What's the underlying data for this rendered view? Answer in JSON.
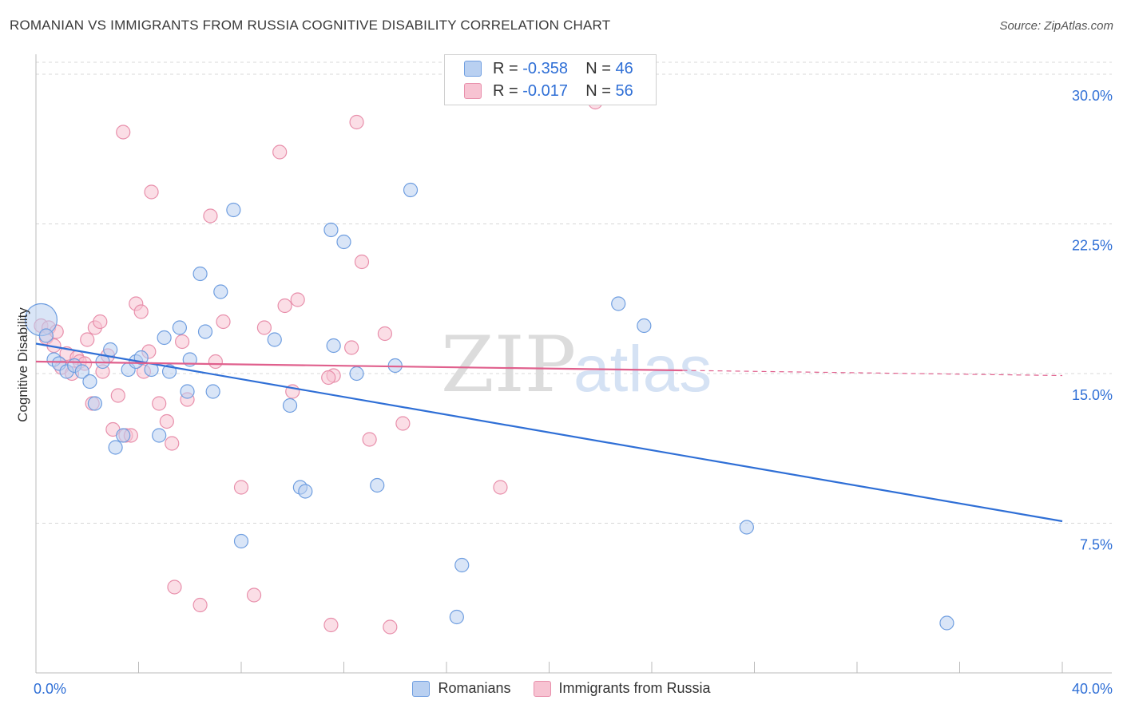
{
  "title": "ROMANIAN VS IMMIGRANTS FROM RUSSIA COGNITIVE DISABILITY CORRELATION CHART",
  "source": "Source: ZipAtlas.com",
  "watermark": {
    "zip": "ZIP",
    "atlas": "atlas"
  },
  "legend": {
    "rows": [
      {
        "r_label": "R =",
        "r_value": "-0.358",
        "n_label": "N =",
        "n_value": "46"
      },
      {
        "r_label": "R =",
        "r_value": "-0.017",
        "n_label": "N =",
        "n_value": "56"
      }
    ]
  },
  "bottom_legend": {
    "series_a": "Romanians",
    "series_b": "Immigrants from Russia"
  },
  "colors": {
    "blue_fill": "#b9d0f1",
    "blue_stroke": "#6f9ee0",
    "blue_line": "#2f6fd6",
    "pink_fill": "#f7c3d2",
    "pink_stroke": "#e88fab",
    "pink_line": "#e0608d",
    "grid": "#d8d8d8",
    "axis_label": "#2f6fd6"
  },
  "chart_data": {
    "type": "scatter",
    "title": "ROMANIAN VS IMMIGRANTS FROM RUSSIA COGNITIVE DISABILITY CORRELATION CHART",
    "xlabel": "",
    "ylabel": "Cognitive Disability",
    "xlim": [
      0,
      40
    ],
    "ylim": [
      0,
      30.6
    ],
    "x_tick_labels": [
      "0.0%",
      "40.0%"
    ],
    "y_ticks": [
      7.5,
      15.0,
      22.5,
      30.0
    ],
    "y_tick_labels": [
      "7.5%",
      "15.0%",
      "22.5%",
      "30.0%"
    ],
    "series": [
      {
        "name": "Romanians",
        "r": -0.358,
        "n": 46,
        "trend": {
          "x": [
            0,
            40
          ],
          "y": [
            16.5,
            7.6
          ],
          "dashed_from": null
        },
        "points": [
          {
            "x": 0.2,
            "y": 17.7,
            "big": true
          },
          {
            "x": 0.4,
            "y": 16.9
          },
          {
            "x": 0.7,
            "y": 15.7
          },
          {
            "x": 0.9,
            "y": 15.5
          },
          {
            "x": 1.2,
            "y": 15.1
          },
          {
            "x": 1.5,
            "y": 15.4
          },
          {
            "x": 1.8,
            "y": 15.1
          },
          {
            "x": 2.1,
            "y": 14.6
          },
          {
            "x": 2.3,
            "y": 13.5
          },
          {
            "x": 2.6,
            "y": 15.6
          },
          {
            "x": 2.9,
            "y": 16.2
          },
          {
            "x": 3.1,
            "y": 11.3
          },
          {
            "x": 3.4,
            "y": 11.9
          },
          {
            "x": 3.6,
            "y": 15.2
          },
          {
            "x": 3.9,
            "y": 15.6
          },
          {
            "x": 4.1,
            "y": 15.8
          },
          {
            "x": 4.5,
            "y": 15.2
          },
          {
            "x": 4.8,
            "y": 11.9
          },
          {
            "x": 5.0,
            "y": 16.8
          },
          {
            "x": 5.2,
            "y": 15.1
          },
          {
            "x": 5.6,
            "y": 17.3
          },
          {
            "x": 5.9,
            "y": 14.1
          },
          {
            "x": 6.0,
            "y": 15.7
          },
          {
            "x": 6.4,
            "y": 20.0
          },
          {
            "x": 6.6,
            "y": 17.1
          },
          {
            "x": 6.9,
            "y": 14.1
          },
          {
            "x": 7.2,
            "y": 19.1
          },
          {
            "x": 7.7,
            "y": 23.2
          },
          {
            "x": 8.0,
            "y": 6.6
          },
          {
            "x": 9.3,
            "y": 16.7
          },
          {
            "x": 9.9,
            "y": 13.4
          },
          {
            "x": 10.3,
            "y": 9.3
          },
          {
            "x": 10.5,
            "y": 9.1
          },
          {
            "x": 11.5,
            "y": 22.2
          },
          {
            "x": 11.6,
            "y": 16.4
          },
          {
            "x": 12.0,
            "y": 21.6
          },
          {
            "x": 12.5,
            "y": 15.0
          },
          {
            "x": 13.3,
            "y": 9.4
          },
          {
            "x": 14.0,
            "y": 15.4
          },
          {
            "x": 14.6,
            "y": 24.2
          },
          {
            "x": 16.4,
            "y": 2.8
          },
          {
            "x": 16.6,
            "y": 5.4
          },
          {
            "x": 22.7,
            "y": 18.5
          },
          {
            "x": 23.7,
            "y": 17.4
          },
          {
            "x": 27.7,
            "y": 7.3
          },
          {
            "x": 35.5,
            "y": 2.5
          }
        ]
      },
      {
        "name": "Immigrants from Russia",
        "r": -0.017,
        "n": 56,
        "trend": {
          "x": [
            0,
            40
          ],
          "y": [
            15.6,
            14.9
          ],
          "dashed_from": 25.2
        },
        "points": [
          {
            "x": 0.2,
            "y": 17.4
          },
          {
            "x": 0.4,
            "y": 16.8
          },
          {
            "x": 0.5,
            "y": 17.3
          },
          {
            "x": 0.7,
            "y": 16.4
          },
          {
            "x": 0.8,
            "y": 17.1
          },
          {
            "x": 1.0,
            "y": 15.3
          },
          {
            "x": 1.2,
            "y": 16.0
          },
          {
            "x": 1.4,
            "y": 15.0
          },
          {
            "x": 1.6,
            "y": 15.8
          },
          {
            "x": 1.7,
            "y": 15.6
          },
          {
            "x": 1.9,
            "y": 15.5
          },
          {
            "x": 2.0,
            "y": 16.7
          },
          {
            "x": 2.2,
            "y": 13.5
          },
          {
            "x": 2.3,
            "y": 17.3
          },
          {
            "x": 2.5,
            "y": 17.6
          },
          {
            "x": 2.6,
            "y": 15.1
          },
          {
            "x": 2.8,
            "y": 15.9
          },
          {
            "x": 3.0,
            "y": 12.2
          },
          {
            "x": 3.2,
            "y": 13.9
          },
          {
            "x": 3.4,
            "y": 27.1
          },
          {
            "x": 3.5,
            "y": 11.9
          },
          {
            "x": 3.7,
            "y": 11.9
          },
          {
            "x": 3.9,
            "y": 18.5
          },
          {
            "x": 4.1,
            "y": 18.1
          },
          {
            "x": 4.2,
            "y": 15.1
          },
          {
            "x": 4.4,
            "y": 16.1
          },
          {
            "x": 4.5,
            "y": 24.1
          },
          {
            "x": 4.8,
            "y": 13.5
          },
          {
            "x": 5.1,
            "y": 12.6
          },
          {
            "x": 5.3,
            "y": 11.5
          },
          {
            "x": 5.4,
            "y": 4.3
          },
          {
            "x": 5.7,
            "y": 16.6
          },
          {
            "x": 5.9,
            "y": 13.7
          },
          {
            "x": 6.4,
            "y": 3.4
          },
          {
            "x": 6.8,
            "y": 22.9
          },
          {
            "x": 7.3,
            "y": 17.6
          },
          {
            "x": 8.0,
            "y": 9.3
          },
          {
            "x": 8.5,
            "y": 3.9
          },
          {
            "x": 8.9,
            "y": 17.3
          },
          {
            "x": 9.5,
            "y": 26.1
          },
          {
            "x": 9.7,
            "y": 18.4
          },
          {
            "x": 10.0,
            "y": 14.1
          },
          {
            "x": 10.2,
            "y": 18.7
          },
          {
            "x": 11.5,
            "y": 2.4
          },
          {
            "x": 11.6,
            "y": 14.9
          },
          {
            "x": 12.3,
            "y": 16.3
          },
          {
            "x": 12.5,
            "y": 27.6
          },
          {
            "x": 12.7,
            "y": 20.6
          },
          {
            "x": 13.0,
            "y": 11.7
          },
          {
            "x": 13.6,
            "y": 17.0
          },
          {
            "x": 13.8,
            "y": 2.3
          },
          {
            "x": 14.3,
            "y": 12.5
          },
          {
            "x": 18.1,
            "y": 9.3
          },
          {
            "x": 21.8,
            "y": 28.6
          },
          {
            "x": 11.4,
            "y": 14.8
          },
          {
            "x": 7.0,
            "y": 15.6
          }
        ]
      }
    ]
  }
}
